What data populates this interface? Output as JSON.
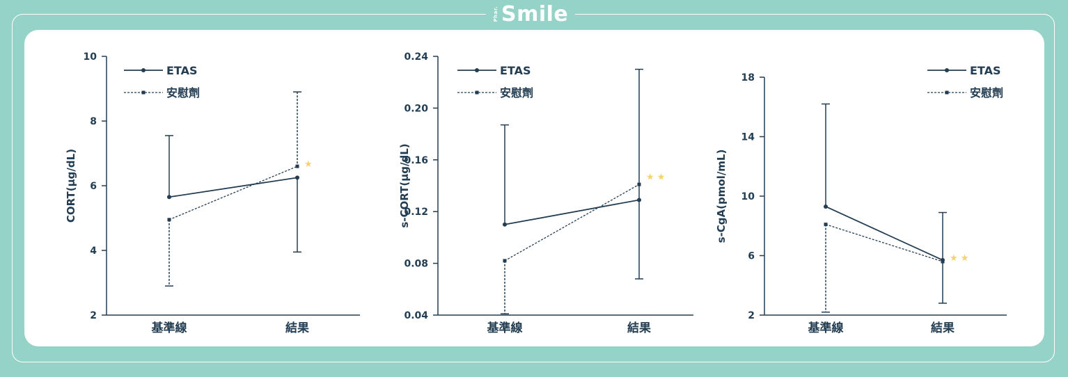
{
  "brand": {
    "small": "Phar.",
    "name": "Smile"
  },
  "colors": {
    "background": "#95d3c8",
    "line": "#233d52",
    "star": "#f5d36a",
    "panel": "#ffffff"
  },
  "chart_data": [
    {
      "type": "line",
      "ylabel": "CORT(μg/dL)",
      "categories": [
        "基準線",
        "結果"
      ],
      "ylim": [
        2,
        10
      ],
      "yticks": [
        2,
        4,
        6,
        8,
        10
      ],
      "tick_format": 0,
      "legend_position": "top-left",
      "series": [
        {
          "name": "ETAS",
          "values": [
            5.65,
            6.25
          ],
          "err_high": [
            7.55,
            null
          ],
          "err_low": [
            null,
            3.95
          ],
          "marker": "circle",
          "dash": false
        },
        {
          "name": "安慰劑",
          "values": [
            4.95,
            6.6
          ],
          "err_high": [
            null,
            8.9
          ],
          "err_low": [
            2.9,
            null
          ],
          "marker": "square",
          "dash": true
        }
      ],
      "annotations": [
        {
          "text": "★",
          "category": 1,
          "y": 6.6
        }
      ]
    },
    {
      "type": "line",
      "ylabel": "s-CORT(μg/dL)",
      "categories": [
        "基準線",
        "結果"
      ],
      "ylim": [
        0.04,
        0.24
      ],
      "yticks": [
        0.04,
        0.08,
        0.12,
        0.16,
        0.2,
        0.24
      ],
      "tick_format": 2,
      "legend_position": "top-left",
      "series": [
        {
          "name": "ETAS",
          "values": [
            0.11,
            0.129
          ],
          "err_high": [
            0.187,
            0.23
          ],
          "err_low": [
            null,
            0.068
          ],
          "marker": "circle",
          "dash": false
        },
        {
          "name": "安慰劑",
          "values": [
            0.082,
            0.141
          ],
          "err_high": [
            null,
            null
          ],
          "err_low": [
            0.041,
            null
          ],
          "marker": "square",
          "dash": true
        }
      ],
      "annotations": [
        {
          "text": "★ ★",
          "category": 1,
          "y": 0.145
        }
      ]
    },
    {
      "type": "line",
      "ylabel": "s-CgA(pmol/mL)",
      "categories": [
        "基準線",
        "結果"
      ],
      "ylim": [
        2,
        18
      ],
      "yticks": [
        2,
        6,
        10,
        14,
        18
      ],
      "tick_format": 0,
      "legend_position": "top-right",
      "series": [
        {
          "name": "ETAS",
          "values": [
            9.3,
            5.7
          ],
          "err_high": [
            16.2,
            8.9
          ],
          "err_low": [
            null,
            2.8
          ],
          "marker": "circle",
          "dash": false
        },
        {
          "name": "安慰劑",
          "values": [
            8.1,
            5.6
          ],
          "err_high": [
            null,
            null
          ],
          "err_low": [
            2.2,
            null
          ],
          "marker": "square",
          "dash": true
        }
      ],
      "annotations": [
        {
          "text": "★ ★",
          "category": 1,
          "y": 5.7
        }
      ]
    }
  ]
}
